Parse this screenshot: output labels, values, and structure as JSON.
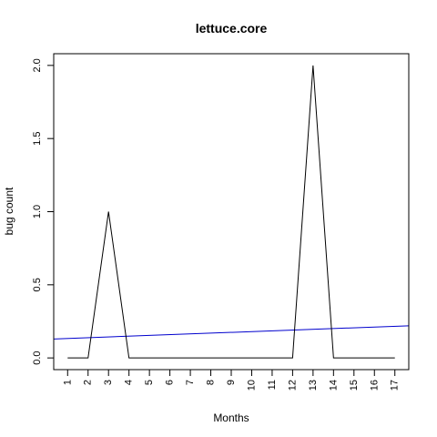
{
  "chart_data": {
    "type": "line",
    "title": "lettuce.core",
    "xlabel": "Months",
    "ylabel": "bug count",
    "x": [
      1,
      2,
      3,
      4,
      5,
      6,
      7,
      8,
      9,
      10,
      11,
      12,
      13,
      14,
      15,
      16,
      17
    ],
    "x_tick_labels": [
      "1",
      "2",
      "3",
      "4",
      "5",
      "6",
      "7",
      "8",
      "9",
      "10",
      "11",
      "12",
      "13",
      "14",
      "15",
      "16",
      "17"
    ],
    "y_ticks": [
      0.0,
      0.5,
      1.0,
      1.5,
      2.0
    ],
    "y_tick_labels": [
      "0.0",
      "0.5",
      "1.0",
      "1.5",
      "2.0"
    ],
    "xlim": [
      0.32,
      17.68
    ],
    "ylim": [
      -0.08,
      2.08
    ],
    "grid": false,
    "series": [
      {
        "values": [
          0,
          0,
          1,
          0,
          0,
          0,
          0,
          0,
          0,
          0,
          0,
          0,
          2,
          0,
          0,
          0,
          0
        ],
        "color": "#000000"
      }
    ],
    "trend_line": {
      "intercept": 0.128,
      "slope": 0.0052,
      "color": "#0000cd"
    }
  }
}
